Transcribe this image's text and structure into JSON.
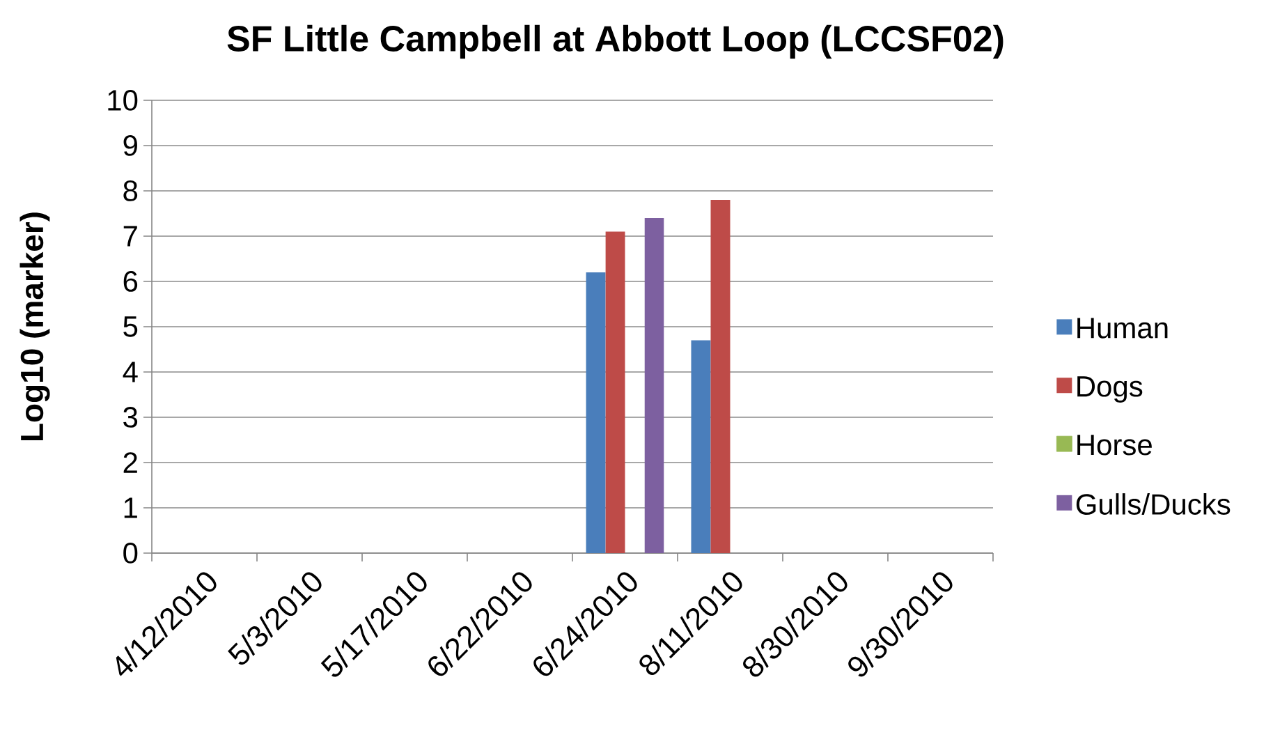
{
  "chart_data": {
    "type": "bar",
    "title": "SF Little Campbell at Abbott Loop (LCCSF02)",
    "ylabel": "Log10 (marker)",
    "categories": [
      "4/12/2010",
      "5/3/2010",
      "5/17/2010",
      "6/22/2010",
      "6/24/2010",
      "8/11/2010",
      "8/30/2010",
      "9/30/2010"
    ],
    "series": [
      {
        "name": "Human",
        "color": "#4a7ebb",
        "values": [
          null,
          null,
          null,
          null,
          6.2,
          4.7,
          null,
          null
        ]
      },
      {
        "name": "Dogs",
        "color": "#be4b48",
        "values": [
          null,
          null,
          null,
          null,
          7.1,
          7.8,
          null,
          null
        ]
      },
      {
        "name": "Horse",
        "color": "#98b954",
        "values": [
          null,
          null,
          null,
          null,
          null,
          null,
          null,
          null
        ]
      },
      {
        "name": "Gulls/Ducks",
        "color": "#7d60a0",
        "values": [
          null,
          null,
          null,
          null,
          7.4,
          null,
          null,
          null
        ]
      }
    ],
    "ylim": [
      0,
      10
    ],
    "yticks": [
      0,
      1,
      2,
      3,
      4,
      5,
      6,
      7,
      8,
      9,
      10
    ],
    "grid": "y",
    "legend": "right"
  }
}
